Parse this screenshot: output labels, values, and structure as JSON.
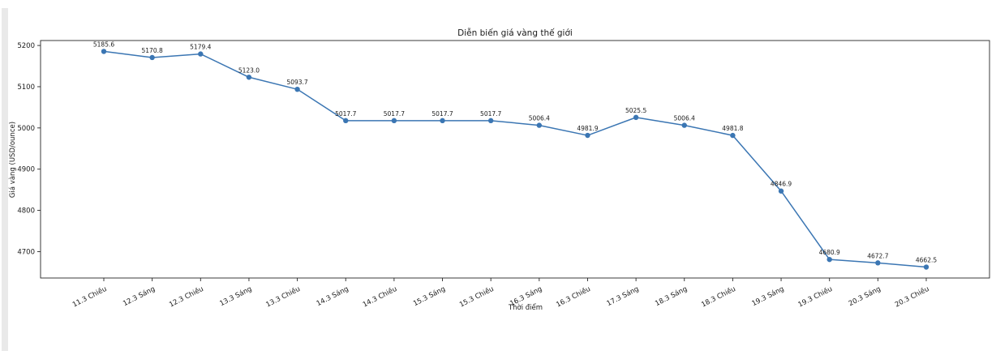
{
  "chart_data": {
    "type": "line",
    "title": "Diễn biến giá vàng thế giới",
    "xlabel": "Thời điểm",
    "ylabel": "Giá vàng (USD/ounce)",
    "categories": [
      "11.3 Chiều",
      "12.3 Sáng",
      "12.3 Chiều",
      "13.3 Sáng",
      "13.3 Chiều",
      "14.3 Sáng",
      "14.3 Chiều",
      "15.3 Sáng",
      "15.3 Chiều",
      "16.3 Sáng",
      "16.3 Chiều",
      "17.3 Sáng",
      "18.3 Sáng",
      "18.3 Chiều",
      "19.3 Sáng",
      "19.3 Chiều",
      "20.3 Sáng",
      "20.3 Chiều"
    ],
    "values": [
      5185.6,
      5170.8,
      5179.4,
      5123.0,
      5093.7,
      5017.7,
      5017.7,
      5017.7,
      5017.7,
      5006.4,
      4981.9,
      5025.5,
      5006.4,
      4981.8,
      4846.9,
      4680.9,
      4672.7,
      4662.5
    ],
    "yticks": [
      4700,
      4800,
      4900,
      5000,
      5100,
      5200
    ],
    "ylim": [
      4636,
      5212
    ],
    "grid": false,
    "legend": "none",
    "data_labels": true,
    "line_color": "#3b76b3",
    "marker_color": "#3b76b3",
    "axis_color": "#262626",
    "text_color": "#1a1a1a"
  }
}
